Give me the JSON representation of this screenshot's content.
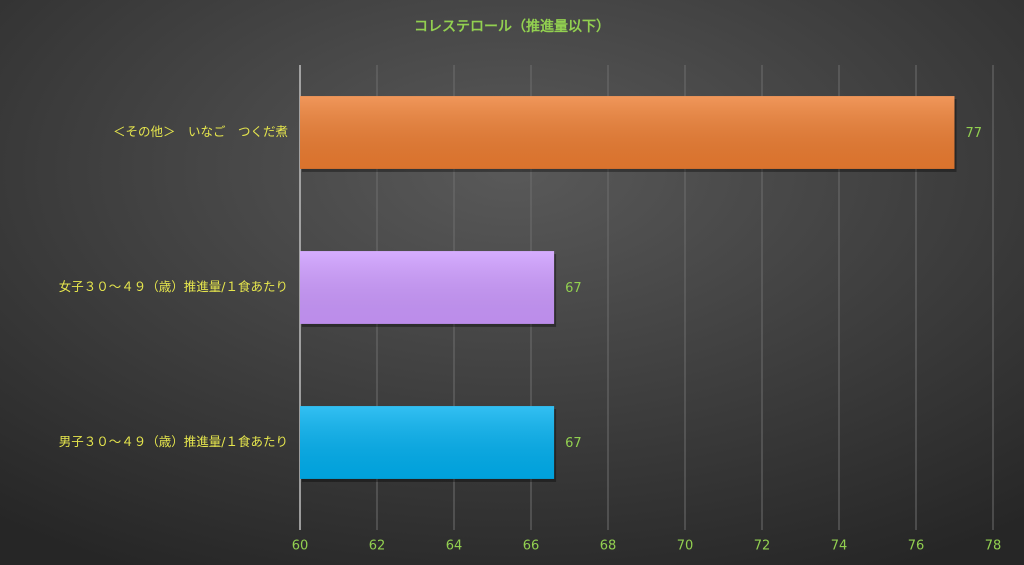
{
  "chart_data": {
    "type": "bar",
    "orientation": "horizontal",
    "title": "コレステロール（推進量以下）",
    "categories": [
      "＜その他＞　いなご　つくだ煮",
      "女子３０～４９（歳）推進量/１食あたり",
      "男子３０～４９（歳）推進量/１食あたり"
    ],
    "values": [
      77,
      66.6,
      66.6
    ],
    "value_labels": [
      "77",
      "67",
      "67"
    ],
    "colors": [
      "#ed7d31",
      "#cc99ff",
      "#00b0f0"
    ],
    "xlim": [
      60,
      78
    ],
    "xticks": [
      60,
      62,
      64,
      66,
      68,
      70,
      72,
      74,
      76,
      78
    ],
    "grid": true
  }
}
